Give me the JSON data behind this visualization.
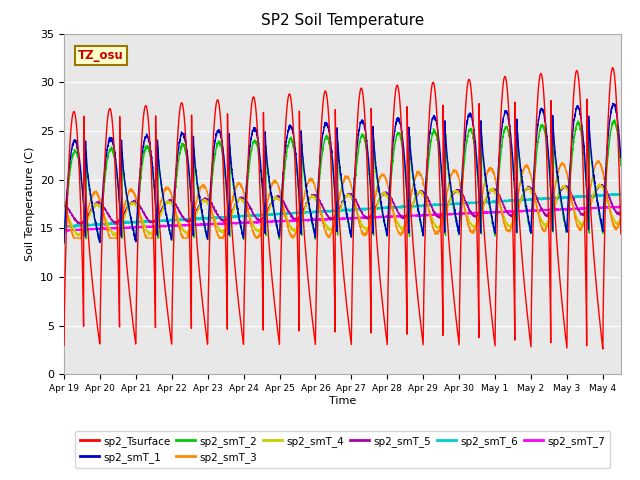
{
  "title": "SP2 Soil Temperature",
  "xlabel": "Time",
  "ylabel": "Soil Temperature (C)",
  "ylim": [
    0,
    35
  ],
  "background_color": "#e8e8e8",
  "tz_label": "TZ_osu",
  "series_colors": {
    "sp2_Tsurface": "#ff0000",
    "sp2_smT_1": "#0000cc",
    "sp2_smT_2": "#00cc00",
    "sp2_smT_3": "#ff8800",
    "sp2_smT_4": "#cccc00",
    "sp2_smT_5": "#aa00aa",
    "sp2_smT_6": "#00cccc",
    "sp2_smT_7": "#ff00ff"
  },
  "x_tick_labels": [
    "Apr 19",
    "Apr 20",
    "Apr 21",
    "Apr 22",
    "Apr 23",
    "Apr 24",
    "Apr 25",
    "Apr 26",
    "Apr 27",
    "Apr 28",
    "Apr 29",
    "Apr 30",
    "May 1",
    "May 2",
    "May 3",
    "May 4"
  ],
  "n_days": 15.5,
  "yticks": [
    0,
    5,
    10,
    15,
    20,
    25,
    30,
    35
  ]
}
